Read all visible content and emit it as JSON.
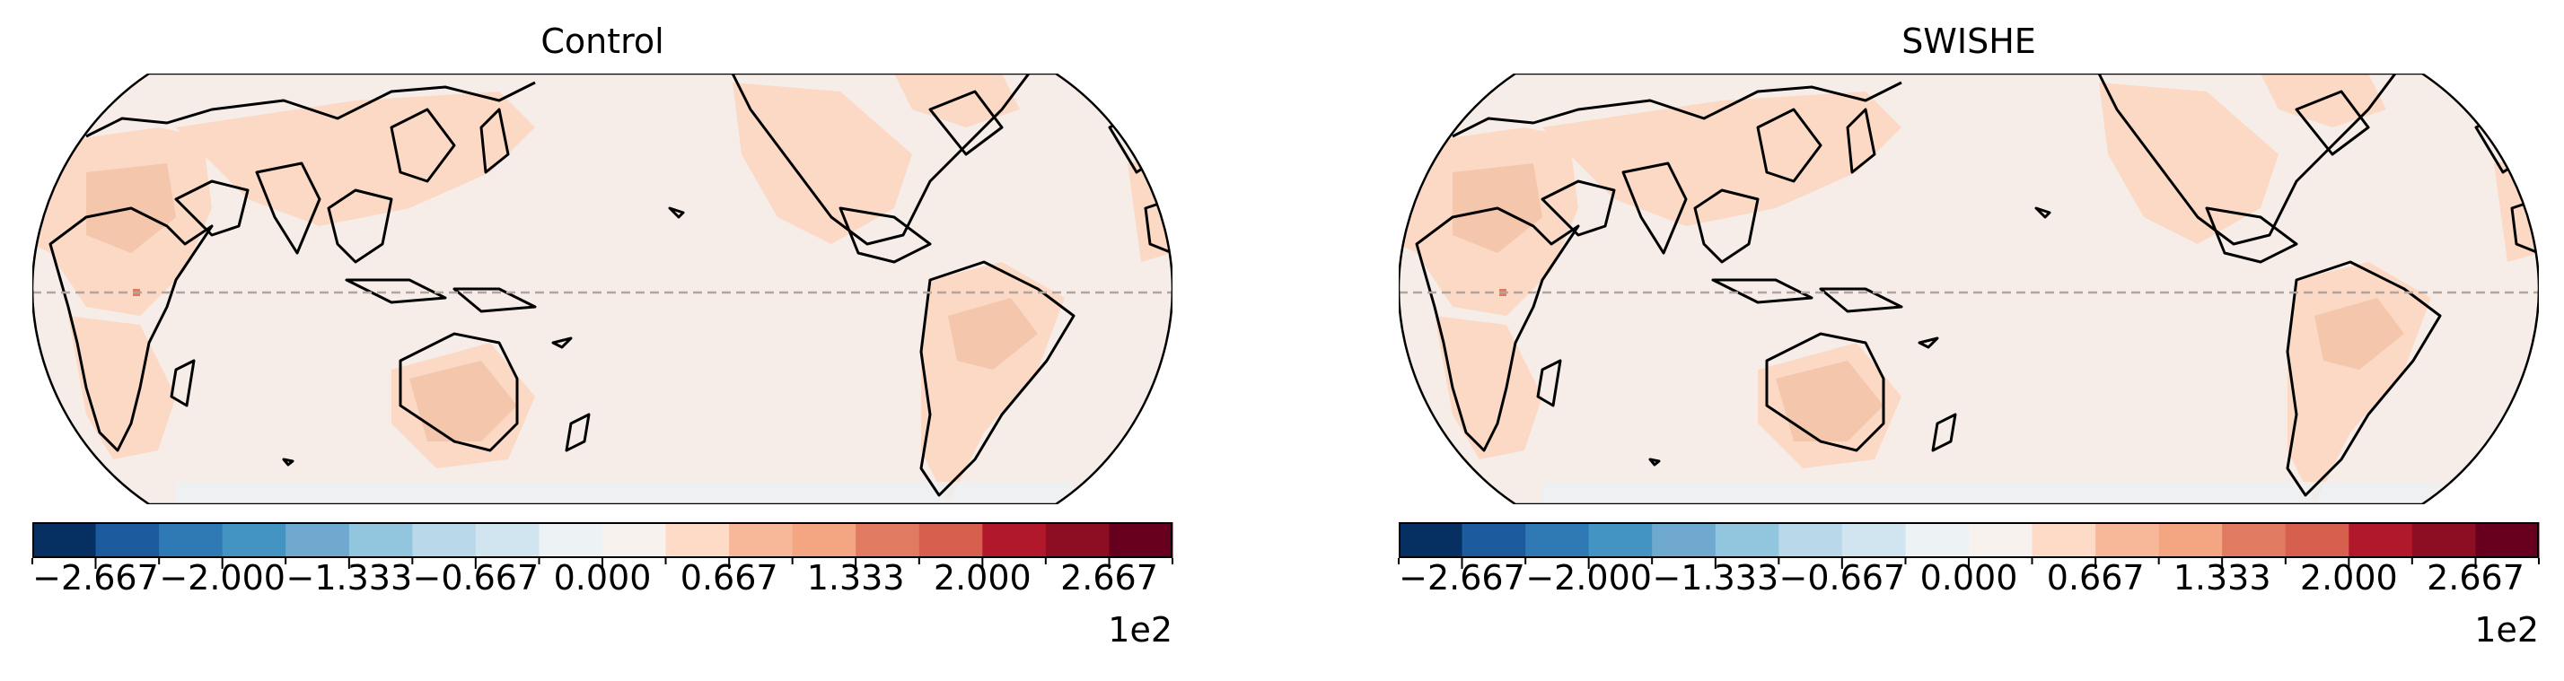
{
  "panels": [
    {
      "title": "Control"
    },
    {
      "title": "SWISHE"
    }
  ],
  "colorbar": {
    "colormap": "RdBu_r",
    "min": -3.0,
    "max": 3.0,
    "levels": [
      -3.0,
      -2.667,
      -2.333,
      -2.0,
      -1.667,
      -1.333,
      -1.0,
      -0.667,
      -0.333,
      0.0,
      0.333,
      0.667,
      1.0,
      1.333,
      1.667,
      2.0,
      2.333,
      2.667,
      3.0
    ],
    "colors": [
      "#053061",
      "#1c5c9e",
      "#2f79b5",
      "#4393c3",
      "#6fa9d0",
      "#92c5de",
      "#b9d8ea",
      "#d1e5f0",
      "#edf2f5",
      "#f7f2ee",
      "#fddbc7",
      "#f7b89a",
      "#f4a582",
      "#e07b61",
      "#d6604d",
      "#b2182b",
      "#8d0e23",
      "#67001f"
    ],
    "tick_labels": [
      "−2.667",
      "−2.000",
      "−1.333",
      "−0.667",
      "0.000",
      "0.667",
      "1.333",
      "2.000",
      "2.667"
    ],
    "offset_label": "1e2"
  },
  "map": {
    "projection": "Eckert IV, centered on Pacific",
    "background_color": "#f6ede8",
    "equator_line": "dashed"
  }
}
